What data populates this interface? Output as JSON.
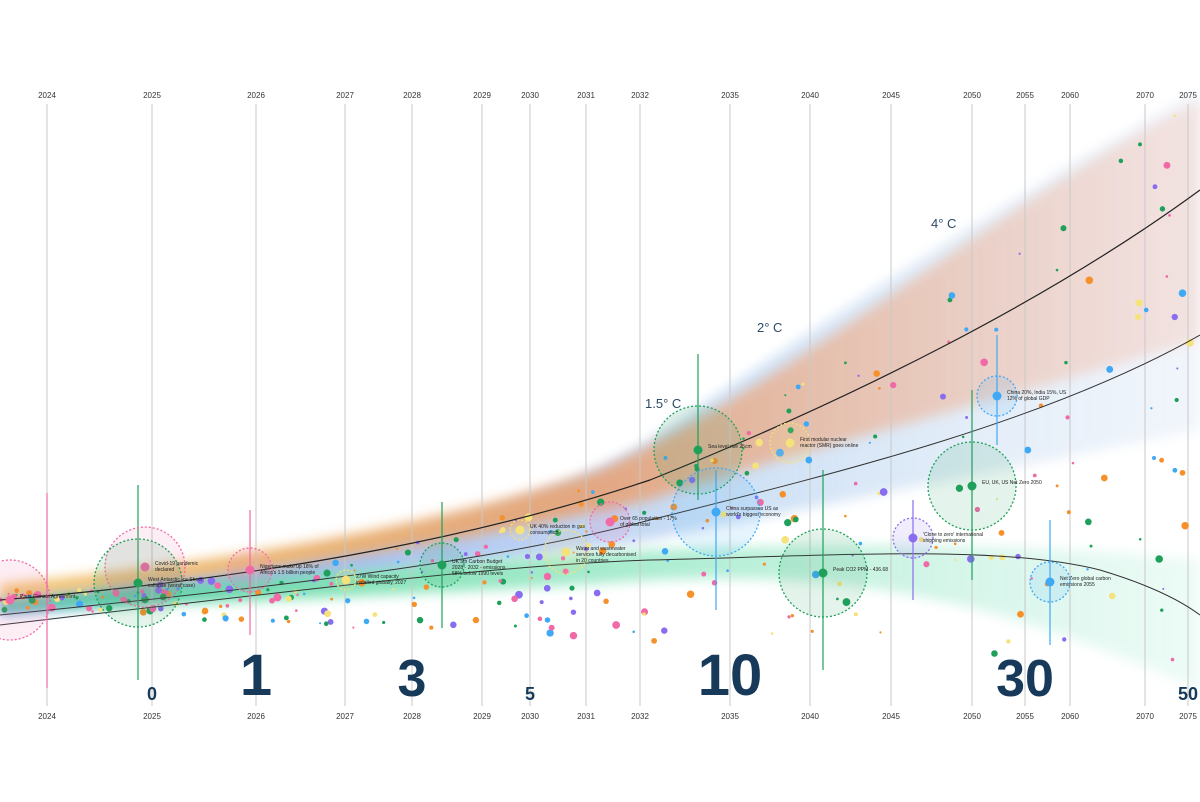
{
  "chart_data": {
    "type": "line",
    "title": "",
    "x_ticks": [
      "2024",
      "2025",
      "2026",
      "2027",
      "2028",
      "2029",
      "2030",
      "2031",
      "2032",
      "2035",
      "2040",
      "2045",
      "2050",
      "2055",
      "2060",
      "2070",
      "2075"
    ],
    "scale_markers": [
      {
        "year": "2025",
        "label": "0"
      },
      {
        "year": "2026",
        "label": "1"
      },
      {
        "year": "2028",
        "label": "3"
      },
      {
        "year": "2030",
        "label": "5"
      },
      {
        "year": "2035",
        "label": "10"
      },
      {
        "year": "2055",
        "label": "30"
      },
      {
        "year": "2075",
        "label": "50"
      }
    ],
    "temperature_labels": [
      "1.5° C",
      "2° C",
      "4° C"
    ],
    "series": [
      {
        "label": "4° C",
        "color": "#e8a080"
      },
      {
        "label": "2° C",
        "color": "#b8d0ee"
      },
      {
        "label": "1.5° C",
        "color": "#7ddcaa"
      }
    ],
    "events": [
      {
        "text": "Paris Climate Agreement"
      },
      {
        "text": "Covid-19 pandemic declared"
      },
      {
        "text": "West Antarctic Ice Sheet collapse (worst case)"
      },
      {
        "text": "Nigerians make up 18% of Africa's 1.5 billion people"
      },
      {
        "text": "27W Wind capacity installed globally, 2027"
      },
      {
        "text": "UK 5th Carbon Budget 2028 - 2032 - emissions 58% below 1990 levels"
      },
      {
        "text": "UK 40% reduction in gas consumption"
      },
      {
        "text": "Water and wastewater services fully decarbonised in 20 countries"
      },
      {
        "text": "Over 65 population - 17% of global total"
      },
      {
        "text": "Sea level rise 25cm"
      },
      {
        "text": "China surpasses US as world's biggest economy"
      },
      {
        "text": "First modular nuclear reactor (SMR) goes online"
      },
      {
        "text": "Peak CO2 PPM - 436.68"
      },
      {
        "text": "'Close to zero' international shipping emissions"
      },
      {
        "text": "EU, UK, US Net Zero 2050"
      },
      {
        "text": "China 20%, India 15%, US 12% of global GDP"
      },
      {
        "text": "Net Zero global carbon emissions 2055"
      }
    ],
    "colors": {
      "pink": "#f06aa8",
      "green": "#1ea05a",
      "blue": "#3fa9f5",
      "yellow": "#f5e27a",
      "orange": "#f5902a",
      "purple": "#8a6cf0",
      "text": "#173a5a"
    }
  }
}
